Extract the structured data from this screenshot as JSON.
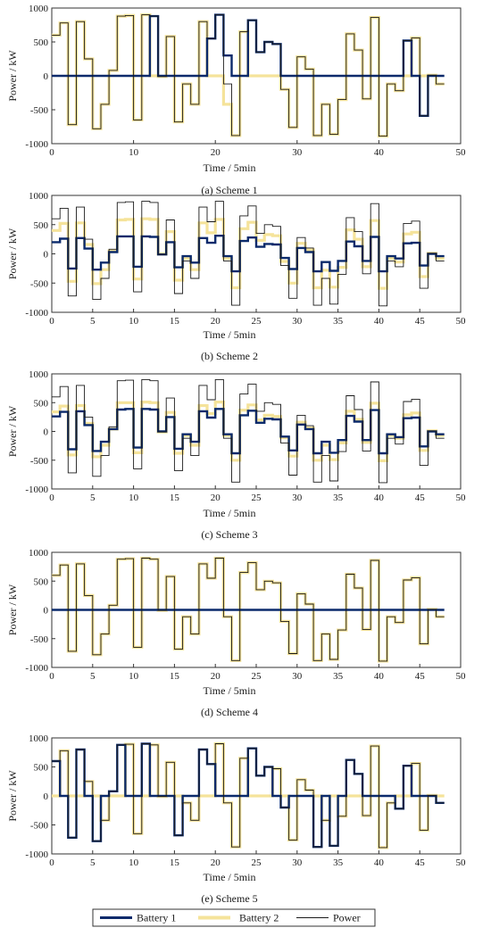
{
  "chart_data": {
    "type": "line",
    "step": true,
    "x": [
      0,
      1,
      2,
      3,
      4,
      5,
      6,
      7,
      8,
      9,
      10,
      11,
      12,
      13,
      14,
      15,
      16,
      17,
      18,
      19,
      20,
      21,
      22,
      23,
      24,
      25,
      26,
      27,
      28,
      29,
      30,
      31,
      32,
      33,
      34,
      35,
      36,
      37,
      38,
      39,
      40,
      41,
      42,
      43,
      44,
      45,
      46,
      47
    ],
    "xlim": [
      0,
      50
    ],
    "xticks": [
      0,
      5,
      10,
      15,
      20,
      25,
      30,
      35,
      40,
      45,
      50
    ],
    "xticks_scheme1": [
      0,
      10,
      20,
      30,
      40,
      50
    ],
    "ylim": [
      -1000,
      1000
    ],
    "yticks": [
      1000,
      500,
      0,
      -500,
      -1000
    ],
    "xlabel": "Time / 5min",
    "ylabel": "Power / kW",
    "legend": {
      "placement": "bottom",
      "entries": [
        {
          "label": "Battery 1",
          "color": "#0b2a6b"
        },
        {
          "label": "Battery 2",
          "color": "#f5e39a"
        },
        {
          "label": "Power",
          "color": "#1a1a1a"
        }
      ]
    },
    "power": [
      600,
      780,
      -720,
      800,
      250,
      -780,
      -420,
      80,
      880,
      890,
      -650,
      900,
      880,
      -10,
      580,
      -680,
      -120,
      -420,
      800,
      550,
      900,
      -120,
      -880,
      650,
      820,
      350,
      500,
      470,
      -200,
      -760,
      280,
      100,
      -880,
      -420,
      -860,
      -350,
      620,
      380,
      -340,
      860,
      -890,
      -120,
      -220,
      520,
      560,
      -590,
      10,
      -120
    ],
    "schemes": [
      {
        "caption": "(a) Scheme 1",
        "x_tick_mode": "scheme1",
        "battery1": [
          0,
          0,
          0,
          0,
          0,
          0,
          0,
          0,
          0,
          0,
          0,
          0,
          880,
          0,
          0,
          0,
          0,
          0,
          0,
          550,
          900,
          300,
          0,
          0,
          820,
          350,
          500,
          470,
          0,
          0,
          0,
          0,
          0,
          0,
          0,
          0,
          0,
          0,
          0,
          0,
          0,
          0,
          0,
          520,
          0,
          -590,
          0,
          0
        ],
        "battery2": [
          600,
          780,
          -720,
          800,
          250,
          -780,
          -420,
          80,
          880,
          890,
          -650,
          900,
          0,
          -10,
          580,
          -680,
          -120,
          -420,
          800,
          0,
          0,
          -420,
          -880,
          650,
          0,
          0,
          0,
          0,
          -200,
          -760,
          280,
          100,
          -880,
          -420,
          -860,
          -350,
          620,
          380,
          -340,
          860,
          -890,
          -120,
          -220,
          0,
          560,
          0,
          10,
          -120
        ]
      },
      {
        "caption": "(b) Scheme 2",
        "x_tick_mode": "default",
        "battery1": [
          200,
          260,
          -250,
          270,
          90,
          -270,
          -150,
          30,
          300,
          300,
          -220,
          300,
          290,
          -10,
          200,
          -230,
          -40,
          -150,
          270,
          190,
          310,
          -40,
          -300,
          220,
          280,
          120,
          170,
          160,
          -70,
          -260,
          100,
          30,
          -300,
          -140,
          -290,
          -120,
          210,
          130,
          -120,
          290,
          -300,
          -40,
          -80,
          180,
          190,
          -200,
          0,
          -40
        ],
        "battery2": [
          400,
          520,
          -470,
          530,
          160,
          -510,
          -270,
          50,
          580,
          590,
          -430,
          600,
          590,
          0,
          380,
          -450,
          -80,
          -270,
          530,
          360,
          590,
          -80,
          -580,
          430,
          540,
          230,
          330,
          310,
          -130,
          -500,
          180,
          70,
          -580,
          -280,
          -570,
          -230,
          410,
          250,
          -220,
          570,
          -590,
          -80,
          -140,
          340,
          370,
          -390,
          10,
          -80
        ]
      },
      {
        "caption": "(c) Scheme 3",
        "x_tick_mode": "default",
        "battery1": [
          260,
          340,
          -310,
          350,
          110,
          -340,
          -180,
          40,
          380,
          390,
          -280,
          390,
          380,
          0,
          250,
          -300,
          -50,
          -180,
          350,
          240,
          390,
          -50,
          -380,
          280,
          360,
          150,
          220,
          210,
          -90,
          -330,
          120,
          40,
          -380,
          -180,
          -370,
          -150,
          270,
          170,
          -150,
          370,
          -380,
          -50,
          -100,
          230,
          240,
          -260,
          0,
          -50
        ],
        "battery2": [
          340,
          440,
          -410,
          450,
          140,
          -440,
          -240,
          40,
          500,
          500,
          -370,
          510,
          500,
          -10,
          330,
          -380,
          -70,
          -240,
          450,
          310,
          510,
          -70,
          -500,
          370,
          460,
          200,
          280,
          260,
          -110,
          -430,
          160,
          60,
          -500,
          -240,
          -490,
          -200,
          350,
          210,
          -190,
          490,
          -510,
          -70,
          -120,
          290,
          320,
          -330,
          10,
          -70
        ]
      },
      {
        "caption": "(d) Scheme 4",
        "x_tick_mode": "default",
        "battery1": [
          0,
          0,
          0,
          0,
          0,
          0,
          0,
          0,
          0,
          0,
          0,
          0,
          0,
          0,
          0,
          0,
          0,
          0,
          0,
          0,
          0,
          0,
          0,
          0,
          0,
          0,
          0,
          0,
          0,
          0,
          0,
          0,
          0,
          0,
          0,
          0,
          0,
          0,
          0,
          0,
          0,
          0,
          0,
          0,
          0,
          0,
          0,
          0
        ],
        "battery2": [
          600,
          780,
          -720,
          800,
          250,
          -780,
          -420,
          80,
          880,
          890,
          -650,
          900,
          880,
          -10,
          580,
          -680,
          -120,
          -420,
          800,
          550,
          900,
          -120,
          -880,
          650,
          820,
          350,
          500,
          470,
          -200,
          -760,
          280,
          100,
          -880,
          -420,
          -860,
          -350,
          620,
          380,
          -340,
          860,
          -890,
          -120,
          -220,
          520,
          560,
          -590,
          10,
          -120
        ]
      },
      {
        "caption": "(e) Scheme 5",
        "x_tick_mode": "default",
        "battery1": [
          600,
          0,
          -720,
          800,
          0,
          -780,
          0,
          80,
          880,
          0,
          0,
          900,
          0,
          0,
          0,
          -680,
          0,
          0,
          800,
          550,
          0,
          0,
          0,
          0,
          820,
          350,
          500,
          0,
          -200,
          0,
          0,
          0,
          -880,
          0,
          -860,
          0,
          620,
          380,
          0,
          0,
          0,
          0,
          -220,
          520,
          0,
          0,
          0,
          -120
        ],
        "battery2": [
          0,
          780,
          0,
          0,
          250,
          0,
          -420,
          0,
          0,
          890,
          -650,
          0,
          880,
          -10,
          580,
          0,
          -120,
          -420,
          0,
          0,
          900,
          -120,
          -880,
          650,
          0,
          0,
          0,
          470,
          0,
          -760,
          280,
          100,
          0,
          -420,
          0,
          -350,
          0,
          0,
          -340,
          860,
          -890,
          -120,
          0,
          0,
          560,
          -590,
          10,
          0
        ]
      }
    ]
  }
}
